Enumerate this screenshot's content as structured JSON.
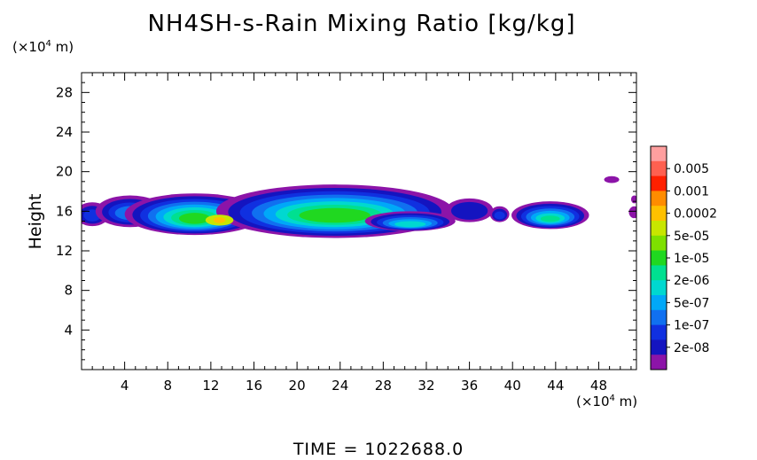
{
  "chart_data": {
    "type": "heatmap",
    "title": "NH4SH-s-Rain Mixing Ratio [kg/kg]",
    "ylabel": "Height",
    "x_unit": {
      "prefix": "(×10",
      "exponent": "4",
      "suffix": " m)"
    },
    "y_unit": {
      "prefix": "(×10",
      "exponent": "4",
      "suffix": " m)"
    },
    "xlim": [
      0,
      51.5
    ],
    "ylim": [
      0,
      30
    ],
    "x_ticks": [
      "4",
      "8",
      "12",
      "16",
      "20",
      "24",
      "28",
      "32",
      "36",
      "40",
      "44",
      "48"
    ],
    "y_ticks": [
      "4",
      "8",
      "12",
      "16",
      "20",
      "24",
      "28"
    ],
    "colorbar": {
      "labels": [
        "0.005",
        "0.001",
        "0.0002",
        "5e-05",
        "1e-05",
        "2e-06",
        "5e-07",
        "1e-07",
        "2e-08"
      ],
      "colors": [
        "#ff9f9f",
        "#ff6050",
        "#ff2000",
        "#ff8c00",
        "#ffc000",
        "#c8e600",
        "#7ee000",
        "#20d820",
        "#00e090",
        "#00d8d0",
        "#00a8f8",
        "#1070f0",
        "#1030e0",
        "#1414c0",
        "#8c14a8"
      ]
    },
    "footer": "TIME = 1022688.0"
  }
}
